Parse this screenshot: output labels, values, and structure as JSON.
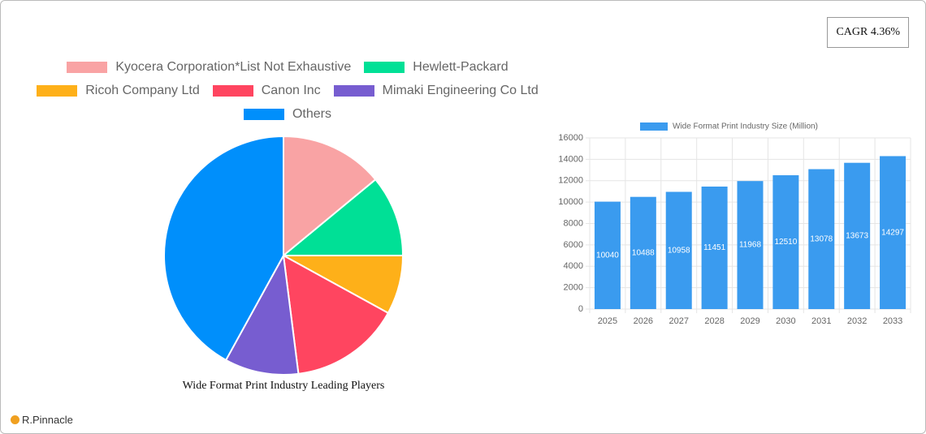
{
  "annotation": "CAGR 4.36%",
  "brand": "R.Pinnacle",
  "chart_data": [
    {
      "type": "pie",
      "title": "Wide Format Print Industry Leading Players",
      "categories": [
        "Kyocera Corporation*List Not Exhaustive",
        "Hewlett-Packard",
        "Ricoh Company Ltd",
        "Canon Inc",
        "Mimaki Engineering Co  Ltd",
        "Others"
      ],
      "values": [
        14,
        11,
        8,
        15,
        10,
        42
      ],
      "colors": [
        "#f9a3a4",
        "#00e096",
        "#feb019",
        "#ff4560",
        "#775dd0",
        "#008ffb"
      ]
    },
    {
      "type": "bar",
      "categories": [
        "2025",
        "2026",
        "2027",
        "2028",
        "2029",
        "2030",
        "2031",
        "2032",
        "2033"
      ],
      "series": [
        {
          "name": "Wide Format Print Industry Size (Million)",
          "color": "#3a9bef",
          "values": [
            10040,
            10488,
            10958,
            11451,
            11968,
            12510,
            13078,
            13673,
            14297
          ]
        }
      ],
      "ylim": [
        0,
        16000
      ],
      "yticks": [
        0,
        2000,
        4000,
        6000,
        8000,
        10000,
        12000,
        14000,
        16000
      ],
      "grid": true
    }
  ]
}
